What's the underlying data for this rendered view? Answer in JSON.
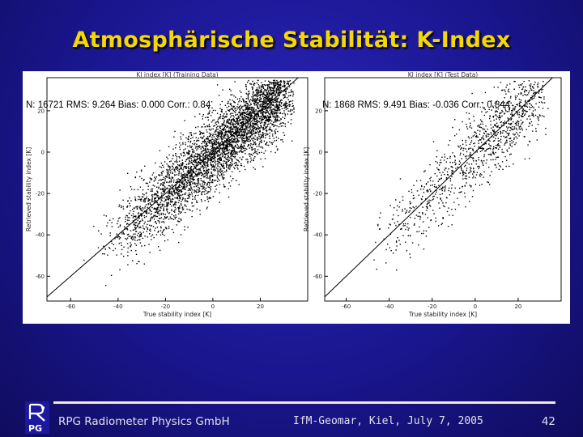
{
  "slide": {
    "title": "Atmosphärische Stabilität: K-Index",
    "footer_left": "RPG Radiometer Physics GmbH",
    "footer_center": "IfM-Geomar, Kiel, July 7, 2005",
    "page_number": "42",
    "logo_text": "PG",
    "colors": {
      "title": "#f5d800",
      "background": "#1a168f",
      "rule": "#f2ead0"
    }
  },
  "chart_data": [
    {
      "type": "scatter",
      "title": "KI index [K] (Training Data)",
      "xlabel": "True stability index [K]",
      "ylabel": "Retrieved stability index [K]",
      "xlim": [
        -70,
        40
      ],
      "ylim": [
        -72,
        36
      ],
      "xticks": [
        -60,
        -40,
        -20,
        0,
        20
      ],
      "yticks": [
        -60,
        -40,
        -20,
        0,
        20
      ],
      "reference_line": "1:1",
      "stats": {
        "text": "N: 16721   RMS: 9.264   Bias: 0.000   Corr.: 0.84"
      },
      "point_count_shown": 4200,
      "point_density_peak": [
        22,
        24
      ],
      "point_spread_k": 9.3
    },
    {
      "type": "scatter",
      "title": "KI index [K] (Test Data)",
      "xlabel": "True stability index [K]",
      "ylabel": "Retrieved stability index [K]",
      "xlim": [
        -70,
        40
      ],
      "ylim": [
        -72,
        36
      ],
      "xticks": [
        -60,
        -40,
        -20,
        0,
        20
      ],
      "yticks": [
        -60,
        -40,
        -20,
        0,
        20
      ],
      "reference_line": "1:1",
      "stats": {
        "text": "N: 1868   RMS: 9.491   Bias: -0.036   Corr.: 0.844"
      },
      "point_count_shown": 1100,
      "point_density_peak": [
        22,
        24
      ],
      "point_spread_k": 9.5
    }
  ]
}
